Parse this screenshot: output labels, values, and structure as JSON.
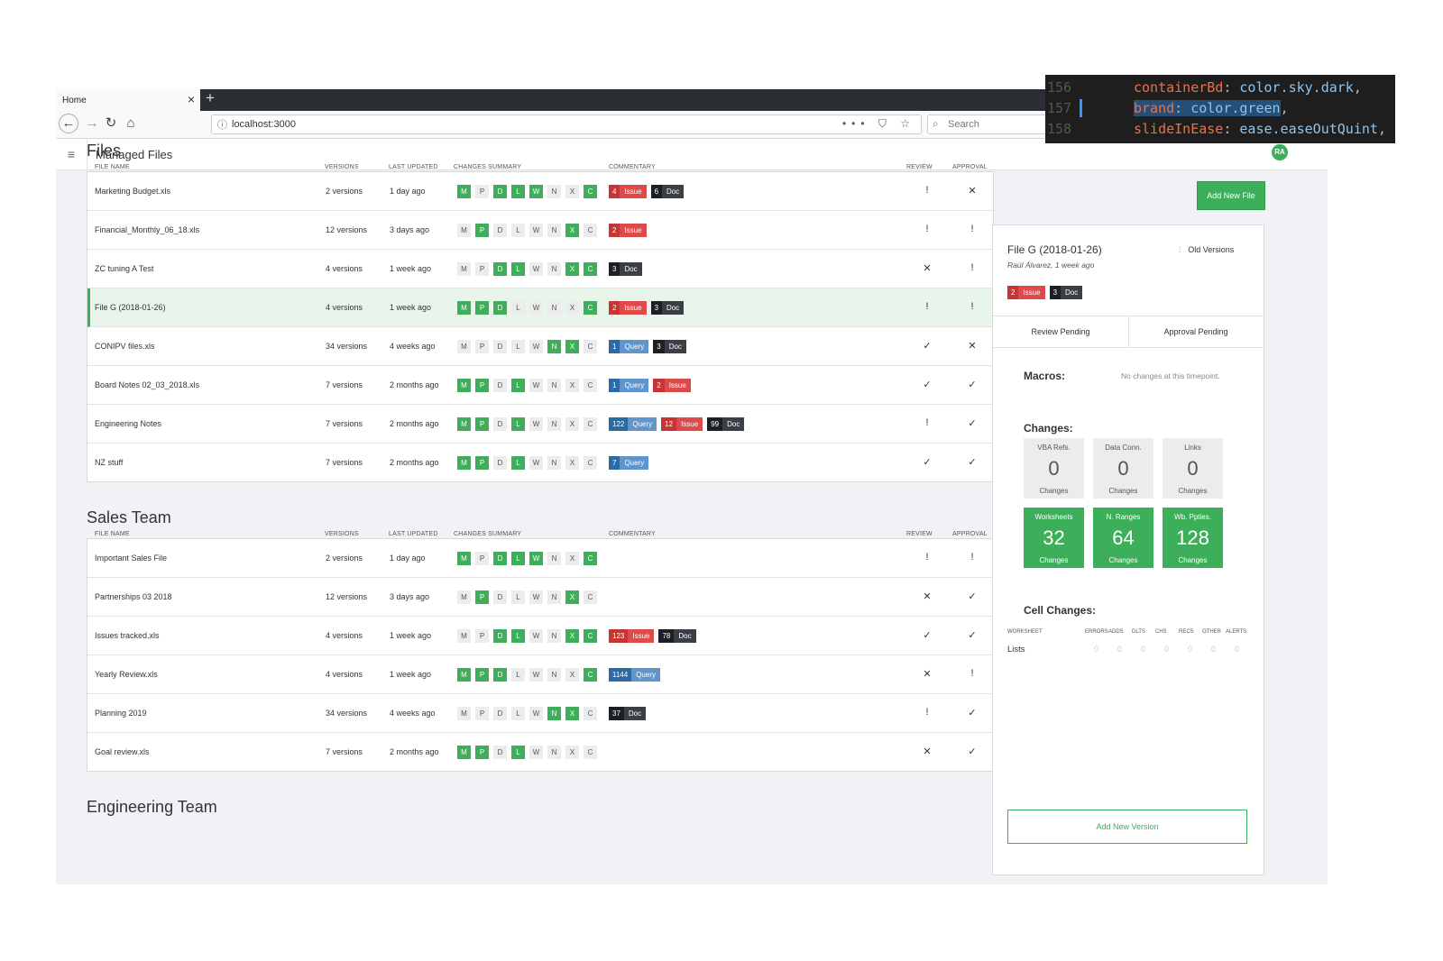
{
  "browser": {
    "tab_title": "Home",
    "tab_close": "×",
    "new_tab": "+",
    "url": "localhost:3000",
    "url_actions": "••• ⛉ ☆",
    "search_placeholder": "Search"
  },
  "app": {
    "title": "Managed Files",
    "avatar": "RA",
    "add_new_file": "Add New File"
  },
  "columns": {
    "file_name": "FILE NAME",
    "versions": "VERSIONS",
    "last_updated": "LAST UPDATED",
    "changes_summary": "CHANGES SUMMARY",
    "commentary": "COMMENTARY",
    "review": "REVIEW",
    "approval": "APPROVAL"
  },
  "sections": [
    {
      "title": "Files",
      "rows": [
        {
          "name": "Marketing Budget.xls",
          "versions": "2 versions",
          "updated": "1 day ago",
          "chips": [
            "M",
            "P",
            "D",
            "L",
            "W",
            "N",
            "X",
            "C"
          ],
          "on": [
            1,
            0,
            1,
            1,
            1,
            0,
            0,
            1
          ],
          "badges": [
            {
              "n": "4",
              "l": "Issue",
              "t": "issue"
            },
            {
              "n": "6",
              "l": "Doc",
              "t": "doc"
            }
          ],
          "review": "!",
          "approval": "✕"
        },
        {
          "name": "Financial_Monthly_06_18.xls",
          "versions": "12 versions",
          "updated": "3 days ago",
          "chips": [
            "M",
            "P",
            "D",
            "L",
            "W",
            "N",
            "X",
            "C"
          ],
          "on": [
            0,
            1,
            0,
            0,
            0,
            0,
            1,
            0
          ],
          "badges": [
            {
              "n": "2",
              "l": "Issue",
              "t": "issue"
            }
          ],
          "review": "!",
          "approval": "!"
        },
        {
          "name": "ZC tuning A Test",
          "versions": "4 versions",
          "updated": "1 week ago",
          "chips": [
            "M",
            "P",
            "D",
            "L",
            "W",
            "N",
            "X",
            "C"
          ],
          "on": [
            0,
            0,
            1,
            1,
            0,
            0,
            1,
            1
          ],
          "badges": [
            {
              "n": "3",
              "l": "Doc",
              "t": "doc"
            }
          ],
          "review": "✕",
          "approval": "!"
        },
        {
          "name": "File G (2018-01-26)",
          "versions": "4 versions",
          "updated": "1 week ago",
          "chips": [
            "M",
            "P",
            "D",
            "L",
            "W",
            "N",
            "X",
            "C"
          ],
          "on": [
            1,
            1,
            1,
            0,
            0,
            0,
            0,
            1
          ],
          "badges": [
            {
              "n": "2",
              "l": "Issue",
              "t": "issue"
            },
            {
              "n": "3",
              "l": "Doc",
              "t": "doc"
            }
          ],
          "review": "!",
          "approval": "!",
          "selected": true
        },
        {
          "name": "CONIPV files.xls",
          "versions": "34 versions",
          "updated": "4 weeks ago",
          "chips": [
            "M",
            "P",
            "D",
            "L",
            "W",
            "N",
            "X",
            "C"
          ],
          "on": [
            0,
            0,
            0,
            0,
            0,
            1,
            1,
            0
          ],
          "badges": [
            {
              "n": "1",
              "l": "Query",
              "t": "query"
            },
            {
              "n": "3",
              "l": "Doc",
              "t": "doc"
            }
          ],
          "review": "✓",
          "approval": "✕"
        },
        {
          "name": "Board Notes 02_03_2018.xls",
          "versions": "7 versions",
          "updated": "2 months ago",
          "chips": [
            "M",
            "P",
            "D",
            "L",
            "W",
            "N",
            "X",
            "C"
          ],
          "on": [
            1,
            1,
            0,
            1,
            0,
            0,
            0,
            0
          ],
          "badges": [
            {
              "n": "1",
              "l": "Query",
              "t": "query"
            },
            {
              "n": "2",
              "l": "Issue",
              "t": "issue"
            }
          ],
          "review": "✓",
          "approval": "✓"
        },
        {
          "name": "Engineering Notes",
          "versions": "7 versions",
          "updated": "2 months ago",
          "chips": [
            "M",
            "P",
            "D",
            "L",
            "W",
            "N",
            "X",
            "C"
          ],
          "on": [
            1,
            1,
            0,
            1,
            0,
            0,
            0,
            0
          ],
          "badges": [
            {
              "n": "122",
              "l": "Query",
              "t": "query"
            },
            {
              "n": "12",
              "l": "Issue",
              "t": "issue"
            },
            {
              "n": "99",
              "l": "Doc",
              "t": "doc"
            }
          ],
          "review": "!",
          "approval": "✓"
        },
        {
          "name": "NZ stuff",
          "versions": "7 versions",
          "updated": "2 months ago",
          "chips": [
            "M",
            "P",
            "D",
            "L",
            "W",
            "N",
            "X",
            "C"
          ],
          "on": [
            1,
            1,
            0,
            1,
            0,
            0,
            0,
            0
          ],
          "badges": [
            {
              "n": "7",
              "l": "Query",
              "t": "query"
            }
          ],
          "review": "✓",
          "approval": "✓"
        }
      ]
    },
    {
      "title": "Sales Team",
      "rows": [
        {
          "name": "Important Sales File",
          "versions": "2 versions",
          "updated": "1 day ago",
          "chips": [
            "M",
            "P",
            "D",
            "L",
            "W",
            "N",
            "X",
            "C"
          ],
          "on": [
            1,
            0,
            1,
            1,
            1,
            0,
            0,
            1
          ],
          "badges": [],
          "review": "!",
          "approval": "!"
        },
        {
          "name": "Partnerships 03 2018",
          "versions": "12 versions",
          "updated": "3 days ago",
          "chips": [
            "M",
            "P",
            "D",
            "L",
            "W",
            "N",
            "X",
            "C"
          ],
          "on": [
            0,
            1,
            0,
            0,
            0,
            0,
            1,
            0
          ],
          "badges": [],
          "review": "✕",
          "approval": "✓"
        },
        {
          "name": "Issues tracked.xls",
          "versions": "4 versions",
          "updated": "1 week ago",
          "chips": [
            "M",
            "P",
            "D",
            "L",
            "W",
            "N",
            "X",
            "C"
          ],
          "on": [
            0,
            0,
            1,
            1,
            0,
            0,
            1,
            1
          ],
          "badges": [
            {
              "n": "123",
              "l": "Issue",
              "t": "issue"
            },
            {
              "n": "78",
              "l": "Doc",
              "t": "doc"
            }
          ],
          "review": "✓",
          "approval": "✓"
        },
        {
          "name": "Yearly Review.xls",
          "versions": "4 versions",
          "updated": "1 week ago",
          "chips": [
            "M",
            "P",
            "D",
            "L",
            "W",
            "N",
            "X",
            "C"
          ],
          "on": [
            1,
            1,
            1,
            0,
            0,
            0,
            0,
            1
          ],
          "badges": [
            {
              "n": "1144",
              "l": "Query",
              "t": "query"
            }
          ],
          "review": "✕",
          "approval": "!"
        },
        {
          "name": "Planning 2019",
          "versions": "34 versions",
          "updated": "4 weeks ago",
          "chips": [
            "M",
            "P",
            "D",
            "L",
            "W",
            "N",
            "X",
            "C"
          ],
          "on": [
            0,
            0,
            0,
            0,
            0,
            1,
            1,
            0
          ],
          "badges": [
            {
              "n": "37",
              "l": "Doc",
              "t": "doc"
            }
          ],
          "review": "!",
          "approval": "✓"
        },
        {
          "name": "Goal review.xls",
          "versions": "7 versions",
          "updated": "2 months ago",
          "chips": [
            "M",
            "P",
            "D",
            "L",
            "W",
            "N",
            "X",
            "C"
          ],
          "on": [
            1,
            1,
            0,
            1,
            0,
            0,
            0,
            0
          ],
          "badges": [],
          "review": "✕",
          "approval": "✓"
        }
      ]
    },
    {
      "title": "Engineering Team",
      "rows": []
    }
  ],
  "panel": {
    "title": "File G (2018-01-26)",
    "subtitle": "Raúl Álvarez, 1 week ago",
    "old_versions": "Old Versions",
    "badges": [
      {
        "n": "2",
        "l": "Issue",
        "t": "issue"
      },
      {
        "n": "3",
        "l": "Doc",
        "t": "doc"
      }
    ],
    "tab_review": "Review Pending",
    "tab_approval": "Approval Pending",
    "macros_label": "Macros:",
    "macros_note": "No changes at this timepoint.",
    "changes_label": "Changes:",
    "tiles": [
      {
        "label": "VBA Refs.",
        "value": "0",
        "sub": "Changes",
        "on": false
      },
      {
        "label": "Data Conn.",
        "value": "0",
        "sub": "Changes",
        "on": false
      },
      {
        "label": "Links",
        "value": "0",
        "sub": "Changes",
        "on": false
      },
      {
        "label": "Worksheets",
        "value": "32",
        "sub": "Changes",
        "on": true
      },
      {
        "label": "N. Ranges",
        "value": "64",
        "sub": "Changes",
        "on": true
      },
      {
        "label": "Wb. Ppties.",
        "value": "128",
        "sub": "Changes",
        "on": true
      }
    ],
    "cell_changes_label": "Cell Changes:",
    "cell_headers": [
      "WORKSHEET",
      "ERRORS",
      "ADDS",
      "DLTS",
      "CHS",
      "RECS",
      "OTHER",
      "ALERTS"
    ],
    "cell_row": {
      "name": "Lists",
      "values": [
        "0",
        "0",
        "0",
        "0",
        "0",
        "0",
        "0"
      ]
    },
    "add_new_version": "Add New Version"
  },
  "code_overlay": {
    "lines": [
      {
        "num": "156",
        "key": "containerBd",
        "val": "color.sky.dark"
      },
      {
        "num": "157",
        "key": "brand",
        "val": "color.green"
      },
      {
        "num": "158",
        "key": "slideInEase",
        "val": "ease.easeOutQuint"
      }
    ]
  },
  "colors": {
    "brand_green": "#3dae5a",
    "issue_red": "#dc4a4a",
    "query_blue": "#5f95cc",
    "doc_dark": "#3a3e45"
  }
}
